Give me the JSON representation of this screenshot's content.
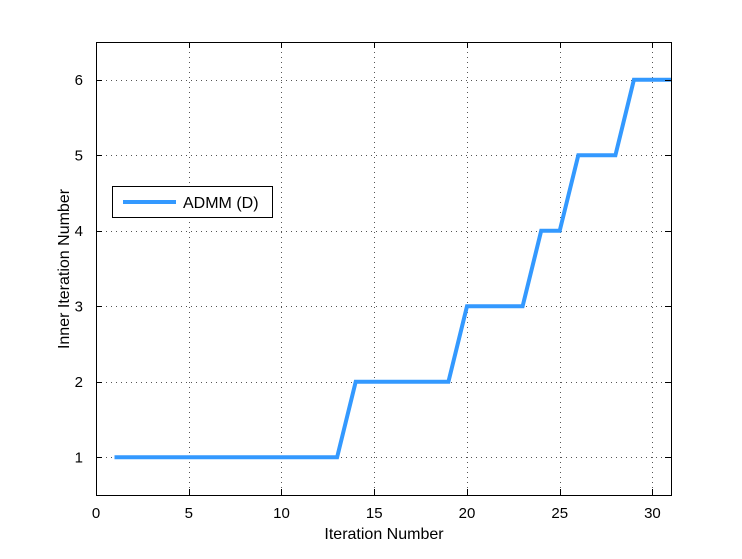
{
  "chart_data": {
    "type": "line",
    "title": "",
    "xlabel": "Iteration Number",
    "ylabel": "Inner Iteration Number",
    "xlim": [
      0,
      31
    ],
    "ylim": [
      0.5,
      6.5
    ],
    "xticks": [
      0,
      5,
      10,
      15,
      20,
      25,
      30
    ],
    "yticks": [
      1,
      2,
      3,
      4,
      5,
      6
    ],
    "grid": true,
    "legend_position": "left",
    "series": [
      {
        "name": "ADMM (D)",
        "color": "#3399ff",
        "x": [
          1,
          2,
          3,
          4,
          5,
          6,
          7,
          8,
          9,
          10,
          11,
          12,
          13,
          14,
          15,
          16,
          17,
          18,
          19,
          20,
          21,
          22,
          23,
          24,
          25,
          26,
          27,
          28,
          29,
          30,
          31
        ],
        "y": [
          1,
          1,
          1,
          1,
          1,
          1,
          1,
          1,
          1,
          1,
          1,
          1,
          1,
          2,
          2,
          2,
          2,
          2,
          2,
          3,
          3,
          3,
          3,
          4,
          4,
          5,
          5,
          5,
          6,
          6,
          6
        ]
      }
    ]
  }
}
